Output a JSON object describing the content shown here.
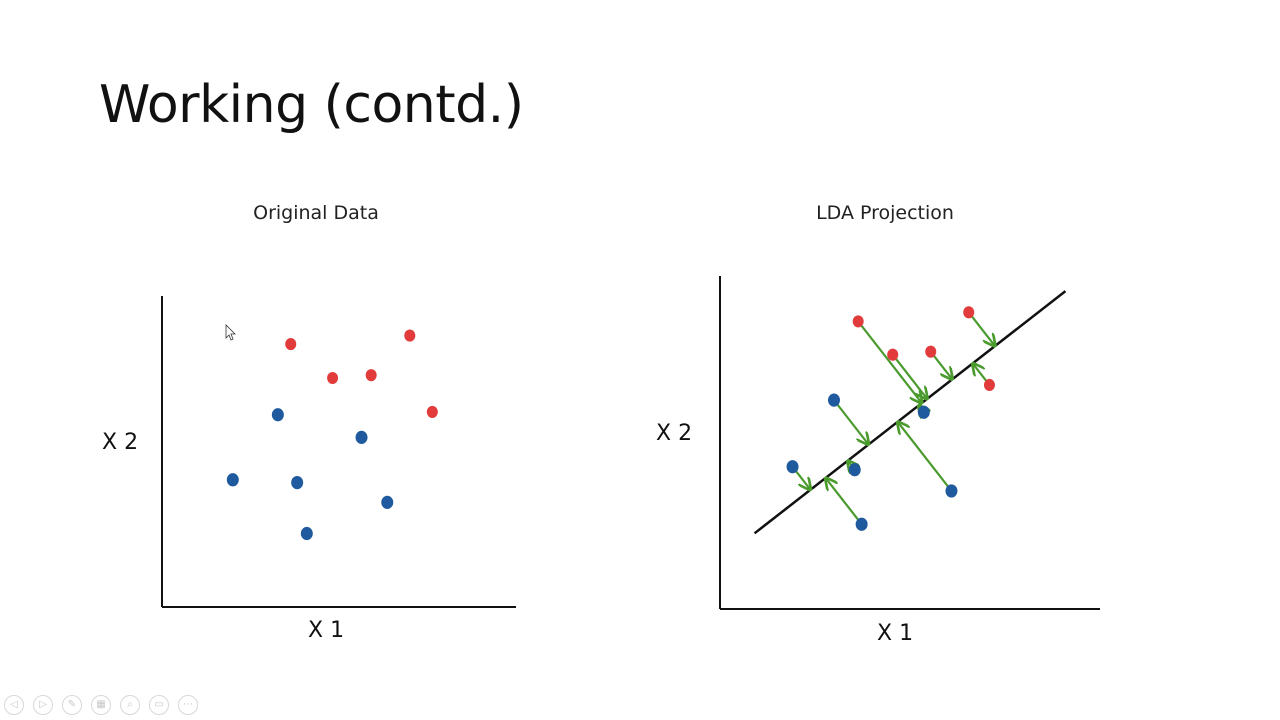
{
  "slide": {
    "title": "Working (contd.)"
  },
  "chart_data": [
    {
      "type": "scatter",
      "title": "Original Data",
      "xlabel": "X 1",
      "ylabel": "X 2",
      "series": [
        {
          "color": "#e23b3b",
          "points": [
            [
              4.0,
              9.3
            ],
            [
              7.7,
              9.6
            ],
            [
              5.3,
              8.1
            ],
            [
              6.5,
              8.2
            ],
            [
              8.4,
              6.9
            ]
          ]
        },
        {
          "color": "#1f5a9e",
          "points": [
            [
              3.6,
              6.8
            ],
            [
              6.2,
              6.0
            ],
            [
              2.2,
              4.5
            ],
            [
              4.2,
              4.4
            ],
            [
              7.0,
              3.7
            ],
            [
              4.5,
              2.6
            ]
          ]
        }
      ]
    },
    {
      "type": "scatter",
      "title": "LDA Projection",
      "xlabel": "X 1",
      "ylabel": "X 2",
      "projection_line": {
        "from": [
          1.0,
          2.5
        ],
        "to": [
          10.0,
          10.5
        ]
      },
      "series": [
        {
          "color": "#e23b3b",
          "points": [
            [
              4.0,
              9.5
            ],
            [
              5.0,
              8.4
            ],
            [
              6.1,
              8.5
            ],
            [
              7.2,
              9.8
            ],
            [
              7.8,
              7.4
            ]
          ]
        },
        {
          "color": "#1f5a9e",
          "points": [
            [
              3.3,
              6.9
            ],
            [
              5.9,
              6.5
            ],
            [
              2.1,
              4.7
            ],
            [
              3.9,
              4.6
            ],
            [
              6.7,
              3.9
            ],
            [
              4.1,
              2.8
            ]
          ]
        }
      ],
      "projection_color": "#4a9a2e"
    }
  ],
  "toolbar": {
    "buttons": [
      {
        "icon": "previous-slide-icon",
        "glyph": "◁"
      },
      {
        "icon": "next-slide-icon",
        "glyph": "▷"
      },
      {
        "icon": "pen-icon",
        "glyph": "✎"
      },
      {
        "icon": "slides-grid-icon",
        "glyph": "▦"
      },
      {
        "icon": "zoom-icon",
        "glyph": "⌕"
      },
      {
        "icon": "subtitles-icon",
        "glyph": "▭"
      },
      {
        "icon": "more-options-icon",
        "glyph": "⋯"
      }
    ]
  }
}
